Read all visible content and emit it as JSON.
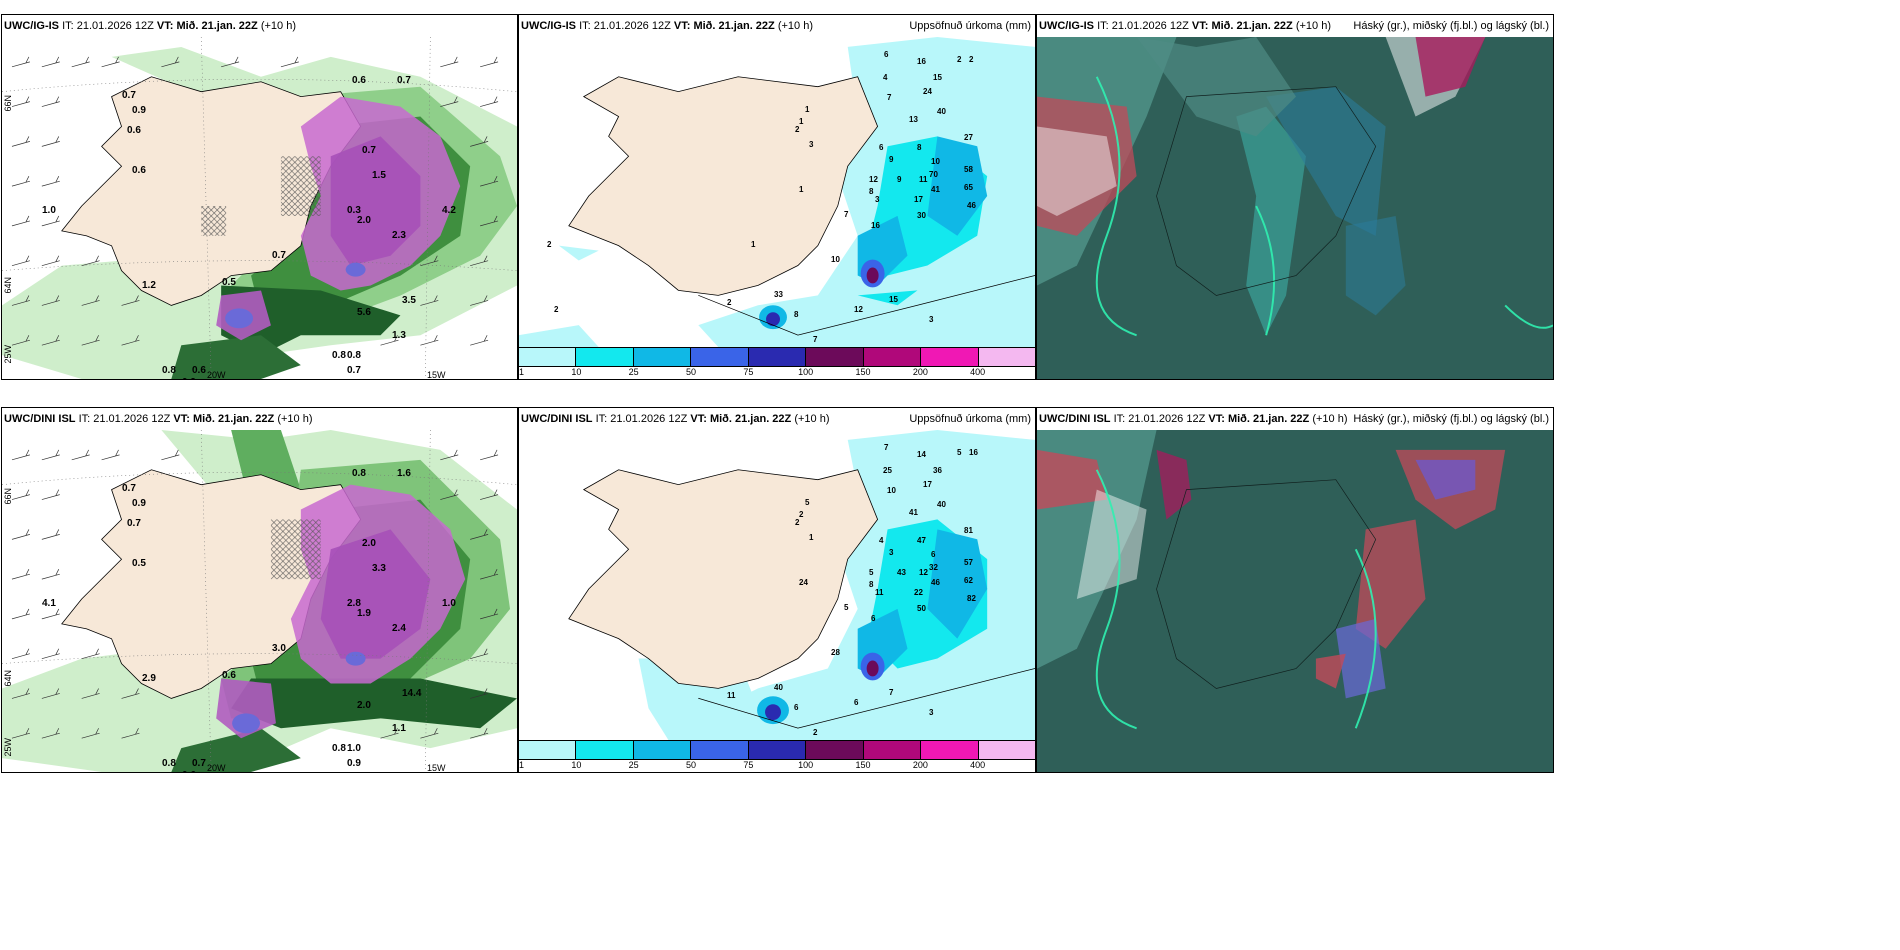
{
  "panels": [
    {
      "id": "p1",
      "model": "UWC/IG-IS",
      "it_label": "IT:",
      "it_value": "21.01.2026 12Z",
      "vt_label": "VT:",
      "vt_value": "Mið. 21.jan. 22Z",
      "lead": "(+10 h)",
      "right_title": "",
      "kind": "wind"
    },
    {
      "id": "p2",
      "model": "UWC/IG-IS",
      "it_label": "IT:",
      "it_value": "21.01.2026 12Z",
      "vt_label": "VT:",
      "vt_value": "Mið. 21.jan. 22Z",
      "lead": "(+10 h)",
      "right_title": "Uppsöfnuð úrkoma (mm)",
      "kind": "precip"
    },
    {
      "id": "p3",
      "model": "UWC/IG-IS",
      "it_label": "IT:",
      "it_value": "21.01.2026 12Z",
      "vt_label": "VT:",
      "vt_value": "Mið. 21.jan. 22Z",
      "lead": "(+10 h)",
      "right_title": "Háský (gr.), miðský (fj.bl.) og lágský (bl.)",
      "kind": "cloud"
    },
    {
      "id": "p4",
      "model": "UWC/DINI ISL",
      "it_label": "IT:",
      "it_value": "21.01.2026 12Z",
      "vt_label": "VT:",
      "vt_value": "Mið. 21.jan. 22Z",
      "lead": "(+10 h)",
      "right_title": "",
      "kind": "wind"
    },
    {
      "id": "p5",
      "model": "UWC/DINI ISL",
      "it_label": "IT:",
      "it_value": "21.01.2026 12Z",
      "vt_label": "VT:",
      "vt_value": "Mið. 21.jan. 22Z",
      "lead": "(+10 h)",
      "right_title": "Uppsöfnuð úrkoma (mm)",
      "kind": "precip"
    },
    {
      "id": "p6",
      "model": "UWC/DINI ISL",
      "it_label": "IT:",
      "it_value": "21.01.2026 12Z",
      "vt_label": "VT:",
      "vt_value": "Mið. 21.jan. 22Z",
      "lead": "(+10 h)",
      "right_title": "Háský (gr.), miðský (fj.bl.) og lágský (bl.)",
      "kind": "cloud"
    }
  ],
  "precip_legend": {
    "colors": [
      "#b8f7fa",
      "#13e8ee",
      "#10b8e6",
      "#3a64e8",
      "#2a2ab0",
      "#6c0a5a",
      "#b0087a",
      "#f018b4",
      "#f4b8f0"
    ],
    "ticks": [
      "1",
      "10",
      "25",
      "50",
      "75",
      "100",
      "150",
      "200",
      "400"
    ]
  },
  "grid_labels": {
    "lat_66": "66N",
    "lat_64": "64N",
    "lat_25w": "25W",
    "lon_20": "20W",
    "lon_15": "15W"
  },
  "wind_values_top": [
    "0.6",
    "0.7",
    "0.7",
    "0.9",
    "0.6",
    "0.6",
    "0.7",
    "1.5",
    "0.3",
    "2.0",
    "2.3",
    "5.6",
    "0.8",
    "0.8",
    "0.7",
    "0.6",
    "0.9",
    "0.8",
    "1.0",
    "4.2",
    "0.7",
    "1.2",
    "3.5",
    "1.3",
    "0.5"
  ],
  "wind_values_bottom": [
    "0.8",
    "1.6",
    "0.7",
    "0.9",
    "0.7",
    "0.5",
    "2.0",
    "3.3",
    "2.8",
    "1.9",
    "2.4",
    "2.0",
    "0.8",
    "1.0",
    "0.9",
    "0.7",
    "0.6",
    "0.8",
    "4.1",
    "1.0",
    "3.0",
    "2.9",
    "14.4",
    "1.1",
    "0.6"
  ],
  "precip_values_top": [
    "6",
    "16",
    "2",
    "4",
    "24",
    "15",
    "7",
    "13",
    "40",
    "6",
    "9",
    "8",
    "10",
    "27",
    "12",
    "9",
    "11",
    "70",
    "58",
    "8",
    "17",
    "41",
    "65",
    "3",
    "16",
    "30",
    "46",
    "7",
    "2",
    "10",
    "1",
    "33",
    "8",
    "2",
    "12",
    "15",
    "3",
    "7",
    "1",
    "2",
    "3",
    "1",
    "1",
    "2",
    "2"
  ],
  "precip_values_bottom": [
    "7",
    "14",
    "5",
    "25",
    "17",
    "36",
    "10",
    "41",
    "40",
    "4",
    "3",
    "47",
    "6",
    "81",
    "5",
    "43",
    "12",
    "32",
    "57",
    "8",
    "22",
    "46",
    "62",
    "11",
    "6",
    "50",
    "82",
    "5",
    "16",
    "28",
    "24",
    "40",
    "6",
    "11",
    "6",
    "7",
    "3",
    "2",
    "2",
    "2",
    "1",
    "5"
  ],
  "colors": {
    "land": "#f7e8d8",
    "sea": "#ffffff",
    "cloud_bg": "#2f5f58"
  }
}
